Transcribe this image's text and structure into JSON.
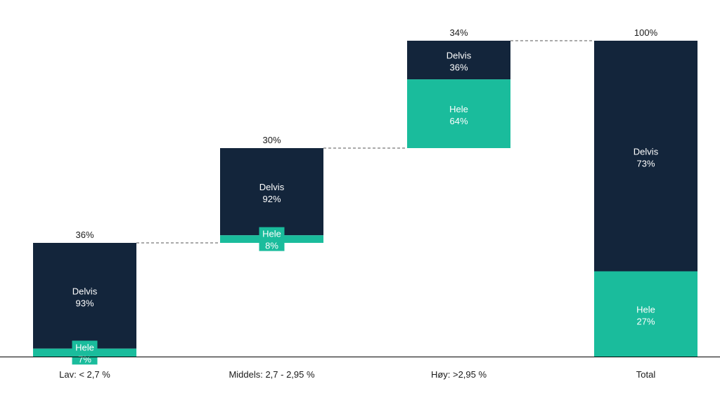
{
  "chart_data": {
    "type": "bar",
    "subtype": "waterfall-stacked",
    "title": "",
    "xlabel": "",
    "ylabel": "",
    "ylim": [
      0,
      100
    ],
    "grid": false,
    "legend": "none",
    "colors": {
      "Delvis": "#13253b",
      "Hele": "#1abc9c",
      "connector": "#555555",
      "axis": "#000000"
    },
    "categories": [
      "Lav: < 2,7 %",
      "Middels: 2,7 - 2,95 %",
      "Høy: >2,95 %",
      "Total"
    ],
    "totals": [
      36,
      30,
      34,
      100
    ],
    "total_labels": [
      "36%",
      "30%",
      "34%",
      "100%"
    ],
    "series": [
      {
        "name": "Hele",
        "values": [
          7,
          8,
          64,
          27
        ],
        "value_labels": [
          "7%",
          "8%",
          "64%",
          "27%"
        ]
      },
      {
        "name": "Delvis",
        "values": [
          93,
          92,
          36,
          73
        ],
        "value_labels": [
          "93%",
          "92%",
          "36%",
          "73%"
        ]
      }
    ]
  }
}
